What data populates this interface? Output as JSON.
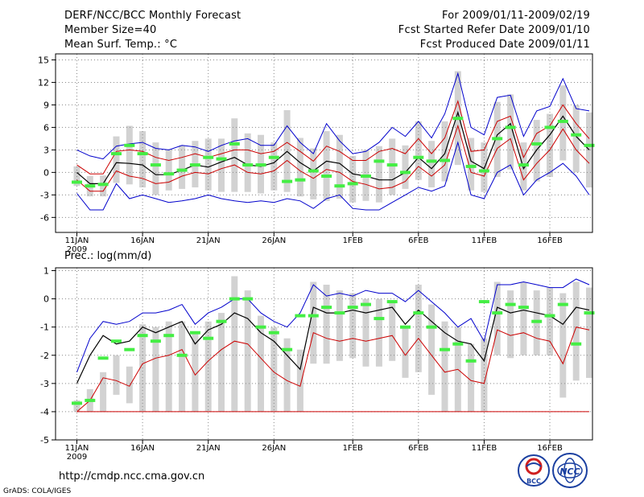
{
  "header": {
    "title": "DERF/NCC/BCC Monthly Forecast",
    "member_size": "Member Size=40",
    "variable_temp": "Mean Surf. Temp.: °C",
    "period": "For 2009/01/11-2009/02/19",
    "fcst_started": "Fcst Started Refer Date 2009/01/10",
    "fcst_produced": "Fcst Produced Date 2009/01/11"
  },
  "footer": {
    "url": "http://cmdp.ncc.cma.gov.cn",
    "grads": "GrADS: COLA/IGES",
    "logo_bcc": "BCC",
    "logo_ncc": "NCC"
  },
  "colors": {
    "max_line": "#0000cc",
    "min_line": "#cc0000",
    "mean_line": "#000000",
    "spread_bar": "#d2d2d2",
    "median_mark": "#44ee44",
    "grid": "#888888"
  },
  "chart_data": [
    {
      "type": "box-line",
      "title": "Mean Surf. Temp.: °C",
      "x_ticks": [
        "11JAN",
        "16JAN",
        "21JAN",
        "26JAN",
        "1FEB",
        "6FEB",
        "11FEB",
        "16FEB"
      ],
      "x_tick_days": [
        1,
        6,
        11,
        16,
        22,
        27,
        32,
        37
      ],
      "year_label": "2009",
      "y_ticks": [
        15,
        12,
        9,
        6,
        3,
        0,
        -3,
        -6
      ],
      "ylim": [
        -8,
        15.8
      ],
      "days": [
        1,
        2,
        3,
        4,
        5,
        6,
        7,
        8,
        9,
        10,
        11,
        12,
        13,
        14,
        15,
        16,
        17,
        18,
        19,
        20,
        21,
        22,
        23,
        24,
        25,
        26,
        27,
        28,
        29,
        30,
        31,
        32,
        33,
        34,
        35,
        36,
        37,
        38,
        39,
        40
      ],
      "series": [
        {
          "name": "ensemble max",
          "color": "#0000cc",
          "values": [
            3.0,
            2.2,
            1.8,
            3.5,
            3.8,
            4.0,
            3.2,
            3.0,
            3.6,
            3.4,
            2.8,
            3.6,
            4.2,
            4.5,
            3.6,
            3.6,
            6.2,
            4.0,
            2.5,
            6.5,
            4.2,
            2.5,
            2.8,
            4.0,
            6.0,
            4.8,
            6.8,
            4.6,
            7.8,
            13.2,
            6.0,
            5.0,
            10.0,
            10.3,
            4.8,
            8.2,
            8.8,
            12.5,
            8.5,
            8.2
          ]
        },
        {
          "name": "upper",
          "color": "#cc0000",
          "values": [
            1.0,
            -0.2,
            -0.2,
            2.8,
            3.0,
            2.8,
            2.0,
            1.6,
            2.0,
            2.5,
            2.0,
            2.5,
            3.0,
            3.0,
            2.5,
            2.8,
            4.0,
            2.8,
            1.5,
            3.5,
            2.8,
            1.6,
            1.6,
            2.8,
            3.2,
            2.5,
            4.5,
            2.5,
            4.6,
            9.5,
            2.8,
            3.0,
            6.8,
            7.5,
            2.0,
            5.2,
            6.2,
            9.0,
            6.5,
            4.5
          ]
        },
        {
          "name": "ensemble mean",
          "color": "#000000",
          "values": [
            0.0,
            -1.5,
            -1.5,
            1.3,
            1.2,
            1.0,
            -0.3,
            -0.3,
            0.3,
            1.0,
            0.7,
            1.4,
            2.0,
            1.0,
            0.8,
            1.3,
            2.8,
            1.3,
            0.2,
            1.5,
            1.2,
            -0.2,
            -0.5,
            -1.0,
            -1.0,
            0.0,
            2.0,
            0.5,
            2.5,
            8.0,
            1.5,
            0.5,
            5.0,
            6.5,
            0.5,
            3.0,
            5.0,
            7.5,
            4.8,
            3.0
          ]
        },
        {
          "name": "lower",
          "color": "#cc0000",
          "values": [
            -1.0,
            -2.5,
            -2.5,
            0.2,
            -0.5,
            -0.8,
            -1.5,
            -1.3,
            -0.5,
            0.0,
            -0.2,
            0.5,
            1.0,
            0.0,
            -0.2,
            0.2,
            1.6,
            0.2,
            -0.8,
            0.4,
            0.0,
            -1.2,
            -1.6,
            -2.2,
            -2.0,
            -1.2,
            0.8,
            -0.5,
            1.0,
            6.2,
            0.0,
            -0.5,
            3.2,
            4.5,
            -1.0,
            1.2,
            3.0,
            5.8,
            3.0,
            1.2
          ]
        },
        {
          "name": "ensemble min",
          "color": "#0000cc",
          "values": [
            -2.8,
            -5.0,
            -5.0,
            -1.5,
            -3.5,
            -3.0,
            -3.5,
            -4.0,
            -3.8,
            -3.5,
            -3.0,
            -3.5,
            -3.8,
            -4.0,
            -3.8,
            -4.0,
            -3.5,
            -3.8,
            -4.8,
            -3.5,
            -3.0,
            -4.8,
            -5.0,
            -5.0,
            -4.0,
            -3.0,
            -2.0,
            -2.5,
            -1.8,
            4.0,
            -3.0,
            -3.5,
            0.0,
            1.0,
            -3.0,
            -1.0,
            0.0,
            1.2,
            -0.5,
            -3.0
          ]
        },
        {
          "name": "spread top",
          "color": "#d2d2d2",
          "values": [
            0.8,
            -0.5,
            -0.4,
            4.8,
            6.2,
            5.5,
            4.0,
            3.0,
            3.6,
            4.2,
            4.5,
            4.5,
            7.2,
            5.2,
            5.0,
            4.0,
            8.3,
            4.6,
            3.2,
            5.5,
            5.0,
            2.2,
            3.0,
            3.5,
            4.5,
            3.6,
            6.8,
            4.2,
            6.8,
            13.5,
            4.6,
            4.0,
            9.4,
            10.4,
            4.0,
            7.0,
            7.8,
            11.6,
            9.0,
            8.0
          ]
        },
        {
          "name": "spread bottom",
          "color": "#d2d2d2",
          "values": [
            -1.8,
            -3.2,
            -3.2,
            -1.4,
            -1.6,
            -2.0,
            -3.0,
            -2.4,
            -2.2,
            -2.0,
            -2.4,
            -2.6,
            -2.6,
            -2.6,
            -2.8,
            -2.4,
            -2.6,
            -3.2,
            -3.6,
            -3.8,
            -3.5,
            -4.0,
            -3.8,
            -4.0,
            -3.0,
            -2.2,
            -1.0,
            -2.0,
            -1.2,
            1.0,
            -2.4,
            -2.6,
            -0.6,
            0.4,
            -2.4,
            -1.2,
            -0.6,
            1.6,
            0.0,
            -2.0
          ]
        },
        {
          "name": "ensemble median",
          "color": "#44ee44",
          "values": [
            -1.3,
            -1.8,
            -1.6,
            2.5,
            3.6,
            2.5,
            1.0,
            -0.2,
            0.3,
            1.0,
            2.0,
            1.8,
            3.8,
            1.0,
            1.0,
            2.0,
            -1.2,
            -1.0,
            0.2,
            -0.5,
            -1.8,
            -1.5,
            -0.5,
            1.5,
            1.0,
            0.0,
            2.0,
            1.5,
            1.6,
            7.2,
            0.8,
            0.2,
            4.5,
            6.0,
            1.0,
            3.8,
            6.0,
            6.8,
            5.0,
            3.6
          ]
        }
      ]
    },
    {
      "type": "box-line",
      "title": "Prec.: log(mm/d)",
      "x_ticks": [
        "11JAN",
        "16JAN",
        "21JAN",
        "26JAN",
        "1FEB",
        "6FEB",
        "11FEB",
        "16FEB"
      ],
      "x_tick_days": [
        1,
        6,
        11,
        16,
        22,
        27,
        32,
        37
      ],
      "year_label": "2009",
      "y_ticks": [
        1,
        0,
        -1,
        -2,
        -3,
        -4,
        -5
      ],
      "ylim": [
        -5,
        1.1
      ],
      "days": [
        1,
        2,
        3,
        4,
        5,
        6,
        7,
        8,
        9,
        10,
        11,
        12,
        13,
        14,
        15,
        16,
        17,
        18,
        19,
        20,
        21,
        22,
        23,
        24,
        25,
        26,
        27,
        28,
        29,
        30,
        31,
        32,
        33,
        34,
        35,
        36,
        37,
        38,
        39,
        40
      ],
      "series": [
        {
          "name": "ensemble max",
          "color": "#0000cc",
          "values": [
            -2.6,
            -1.4,
            -0.8,
            -0.9,
            -0.8,
            -0.5,
            -0.5,
            -0.4,
            -0.2,
            -0.9,
            -0.5,
            -0.3,
            0.0,
            0.0,
            -0.5,
            -0.8,
            -1.0,
            -0.5,
            0.5,
            0.1,
            0.2,
            0.1,
            0.3,
            0.2,
            0.2,
            -0.1,
            0.3,
            -0.1,
            -0.5,
            -1.0,
            -0.7,
            -1.5,
            0.5,
            0.5,
            0.6,
            0.5,
            0.4,
            0.4,
            0.7,
            0.5
          ]
        },
        {
          "name": "ensemble mean",
          "color": "#000000",
          "values": [
            -3.0,
            -2.0,
            -1.3,
            -1.6,
            -1.5,
            -1.0,
            -1.2,
            -1.0,
            -0.8,
            -1.6,
            -1.1,
            -0.9,
            -0.5,
            -0.7,
            -1.2,
            -1.5,
            -2.0,
            -2.5,
            -0.3,
            -0.5,
            -0.5,
            -0.4,
            -0.5,
            -0.4,
            -0.3,
            -0.9,
            -0.4,
            -0.8,
            -1.2,
            -1.5,
            -1.6,
            -2.2,
            -0.3,
            -0.5,
            -0.4,
            -0.5,
            -0.6,
            -0.9,
            -0.3,
            -0.4
          ]
        },
        {
          "name": "ensemble min",
          "color": "#cc0000",
          "values": [
            -4.0,
            -3.6,
            -2.8,
            -2.9,
            -3.1,
            -2.3,
            -2.1,
            -2.0,
            -1.8,
            -2.7,
            -2.2,
            -1.8,
            -1.5,
            -1.6,
            -2.1,
            -2.6,
            -2.9,
            -3.1,
            -1.2,
            -1.4,
            -1.5,
            -1.4,
            -1.5,
            -1.4,
            -1.3,
            -2.0,
            -1.4,
            -2.0,
            -2.6,
            -2.5,
            -2.9,
            -3.0,
            -1.1,
            -1.3,
            -1.2,
            -1.4,
            -1.5,
            -2.3,
            -1.0,
            -1.1
          ]
        },
        {
          "name": "floor",
          "color": "#cc0000",
          "values": [
            -4.0,
            -4.0,
            -4.0,
            -4.0,
            -4.0,
            -4.0,
            -4.0,
            -4.0,
            -4.0,
            -4.0,
            -4.0,
            -4.0,
            -4.0,
            -4.0,
            -4.0,
            -4.0,
            -4.0,
            -4.0,
            -4.0,
            -4.0,
            -4.0,
            -4.0,
            -4.0,
            -4.0,
            -4.0,
            -4.0,
            -4.0,
            -4.0,
            -4.0,
            -4.0,
            -4.0,
            -4.0,
            -4.0,
            -4.0,
            -4.0,
            -4.0,
            -4.0,
            -4.0,
            -4.0,
            -4.0
          ]
        },
        {
          "name": "spread top",
          "color": "#d2d2d2",
          "values": [
            -3.6,
            -3.2,
            -2.6,
            -2.0,
            -2.4,
            -0.9,
            -1.0,
            -0.8,
            -0.8,
            -1.2,
            -0.8,
            -0.5,
            0.8,
            0.3,
            -0.6,
            -1.0,
            -1.4,
            -1.8,
            0.6,
            0.5,
            0.3,
            0.2,
            0.0,
            0.0,
            -0.1,
            -1.0,
            0.5,
            -0.2,
            -0.8,
            -1.0,
            -1.6,
            -1.4,
            0.6,
            0.3,
            0.6,
            0.3,
            0.4,
            0.2,
            0.6,
            0.4
          ]
        },
        {
          "name": "spread bottom",
          "color": "#d2d2d2",
          "values": [
            -4.0,
            -4.0,
            -4.0,
            -3.4,
            -3.7,
            -4.0,
            -4.0,
            -4.0,
            -4.0,
            -4.0,
            -4.0,
            -4.0,
            -4.0,
            -4.0,
            -4.0,
            -4.0,
            -4.0,
            -4.0,
            -2.3,
            -2.3,
            -2.2,
            -2.1,
            -2.4,
            -2.4,
            -2.2,
            -2.8,
            -2.6,
            -3.4,
            -4.0,
            -4.0,
            -4.0,
            -4.0,
            -2.0,
            -2.1,
            -2.0,
            -2.0,
            -2.0,
            -3.5,
            -2.9,
            -2.8
          ]
        },
        {
          "name": "ensemble median",
          "color": "#44ee44",
          "values": [
            -3.7,
            -3.6,
            -2.1,
            -1.5,
            -1.8,
            -1.3,
            -1.5,
            -1.3,
            -2.0,
            -1.2,
            -1.4,
            -0.8,
            0.0,
            0.0,
            -1.0,
            -1.2,
            -1.8,
            -0.6,
            -0.6,
            -0.3,
            -0.5,
            -0.3,
            -0.2,
            -0.7,
            -0.1,
            -1.0,
            -0.5,
            -1.0,
            -1.8,
            -1.6,
            -2.2,
            -0.1,
            -0.5,
            -0.2,
            -0.3,
            -0.8,
            -0.6,
            -0.2,
            -1.6,
            -0.5
          ]
        }
      ]
    }
  ]
}
